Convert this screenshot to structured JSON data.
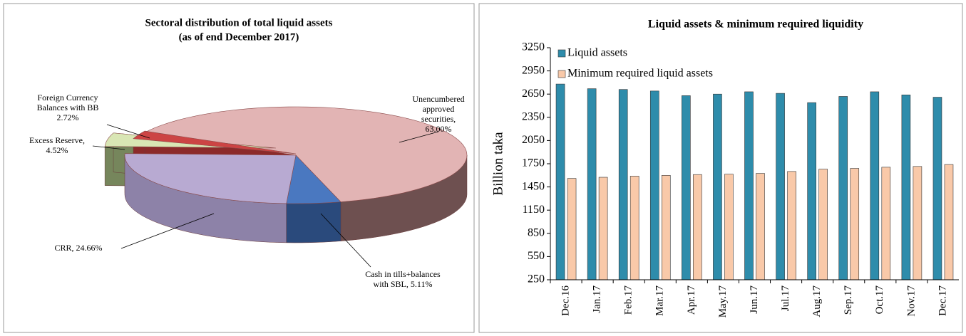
{
  "chart_data": [
    {
      "type": "pie3d",
      "title": "Sectoral distribution of total liquid assets",
      "subtitle": "(as of end December 2017)",
      "labels": [
        "Unencumbered approved securities, 63.00%",
        "Cash in tills+balances with SBL, 5.11%",
        "CRR, 24.66%",
        "Excess Reserve, 4.52%",
        "Foreign Currency Balances with BB 2.72%"
      ],
      "values": [
        63.0,
        5.11,
        24.66,
        4.52,
        2.72
      ],
      "colors": [
        "#e2b4b4",
        "#4a78c0",
        "#b8aad2",
        "#d9e6b4",
        "#cc4444"
      ],
      "side_colors": [
        "#6e5050",
        "#2a4a7c",
        "#8d82a8",
        "#76865c",
        "#8c2a2a"
      ]
    },
    {
      "type": "bar",
      "title": "Liquid  assets & minimum  required liquidity",
      "ylabel": "Billion taka",
      "categories": [
        "Dec.16",
        "Jan.17",
        "Feb.17",
        "Mar.17",
        "Apr.17",
        "May.17",
        "Jun.17",
        "Jul.17",
        "Aug.17",
        "Sep.17",
        "Oct.17",
        "Nov.17",
        "Dec.17"
      ],
      "series": [
        {
          "name": "Liquid assets",
          "color": "#2e8cab",
          "values": [
            2780,
            2720,
            2710,
            2690,
            2630,
            2650,
            2680,
            2660,
            2540,
            2620,
            2680,
            2640,
            2610
          ]
        },
        {
          "name": "Minimum required liquid assets",
          "color": "#f9c9a9",
          "values": [
            1560,
            1575,
            1590,
            1600,
            1610,
            1615,
            1625,
            1650,
            1680,
            1690,
            1705,
            1715,
            1740
          ]
        }
      ],
      "ylim": [
        250,
        3250
      ],
      "yticks": [
        250,
        550,
        850,
        1150,
        1450,
        1750,
        2050,
        2350,
        2650,
        2950,
        3250
      ],
      "legend": "upper left"
    }
  ]
}
